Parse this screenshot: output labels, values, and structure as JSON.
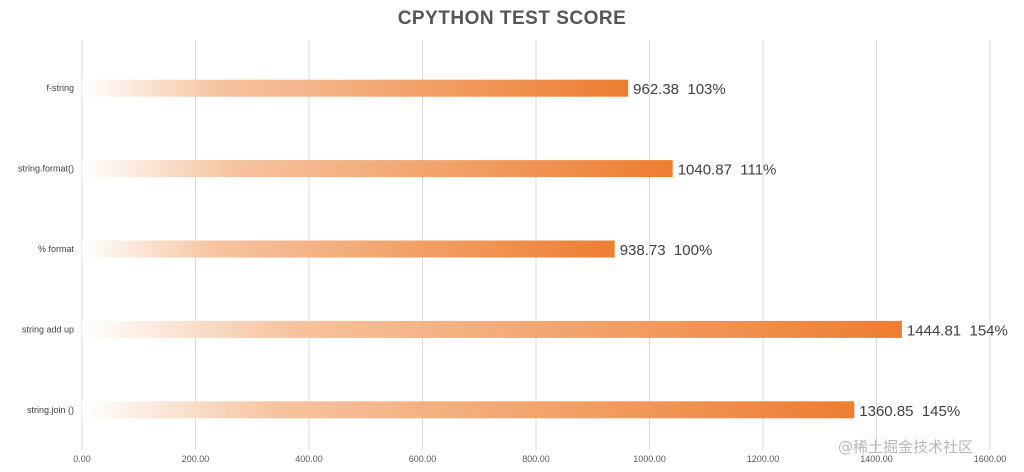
{
  "chart_data": {
    "type": "bar",
    "orientation": "horizontal",
    "title": "CPYTHON TEST SCORE",
    "xlabel": "",
    "ylabel": "",
    "categories": [
      "f-string",
      "string.format()",
      "% format",
      "string add up",
      "string.join ()"
    ],
    "values": [
      962.38,
      1040.87,
      938.73,
      1444.81,
      1360.85
    ],
    "value_labels": [
      "962.38",
      "1040.87",
      "938.73",
      "1444.81",
      "1360.85"
    ],
    "percent_labels": [
      "103%",
      "111%",
      "100%",
      "154%",
      "145%"
    ],
    "xlim": [
      0,
      1600
    ],
    "x_ticks": [
      0,
      200,
      400,
      600,
      800,
      1000,
      1200,
      1400,
      1600
    ],
    "x_tick_labels": [
      "0.00",
      "200.00",
      "400.00",
      "600.00",
      "800.00",
      "1000.00",
      "1200.00",
      "1400.00",
      "1600.00"
    ],
    "grid": "vertical",
    "legend": "none",
    "colors": {
      "bar": "#ed7d31",
      "bar_fade": "#ffffff",
      "grid": "#d9d9d9",
      "text": "#404040"
    }
  },
  "watermark": "@稀土掘金技术社区"
}
